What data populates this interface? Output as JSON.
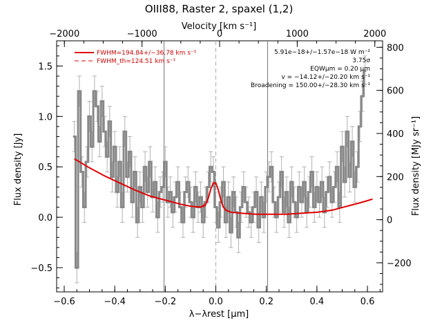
{
  "chart_data": {
    "type": "line",
    "title": "OIII88, Raster 2, spaxel (1,2)",
    "xlabel": "λ−λrest [μm]",
    "ylabel": "Flux density [Jy]",
    "x2label": "Velocity [km s⁻¹]",
    "y2label": "Flux density [MJy sr⁻¹]",
    "xlim": [
      -0.63,
      0.66
    ],
    "ylim": [
      -0.74,
      1.75
    ],
    "x2lim": [
      -2100,
      2100
    ],
    "y2lim": [
      -335,
      830
    ],
    "xticks": [
      "−0.6",
      "−0.4",
      "−0.2",
      "0.0",
      "0.2",
      "0.4",
      "0.6"
    ],
    "xtick_values": [
      -0.6,
      -0.4,
      -0.2,
      0.0,
      0.2,
      0.4,
      0.6
    ],
    "yticks": [
      "−0.5",
      "0.0",
      "0.5",
      "1.0",
      "1.5"
    ],
    "ytick_values": [
      -0.5,
      0.0,
      0.5,
      1.0,
      1.5
    ],
    "x2ticks": [
      "−2000",
      "−1000",
      "0",
      "1000",
      "2000"
    ],
    "x2tick_values": [
      -2000,
      -1000,
      0,
      1000,
      2000
    ],
    "y2ticks": [
      "−200",
      "0",
      "200",
      "400",
      "600",
      "800"
    ],
    "y2tick_values": [
      -200,
      0,
      200,
      400,
      600,
      800
    ],
    "vlines": [
      -0.205,
      0.205
    ],
    "zero_line": 0.0,
    "grid": false,
    "legend": {
      "placement": "top-left",
      "entries": [
        {
          "label": "FWHM=194.84+/−36.78 km s⁻¹",
          "style": "solid",
          "color": "#e00000"
        },
        {
          "label": "FWHM_th=124.51 km s⁻¹",
          "style": "dashed",
          "color": "#e00000"
        }
      ]
    },
    "annotations": [
      "5.91e−18+/−1.57e−18 W m⁻²",
      "3.75σ",
      "EQWμm = 0.20 μm",
      "v = −14.12+/−20.20 km s⁻¹",
      "Broadening = 150.00+/−28.30 km s⁻¹"
    ],
    "series": [
      {
        "name": "Spectrum",
        "color": "#888888",
        "step": true,
        "x": [
          -0.56,
          -0.55,
          -0.54,
          -0.53,
          -0.52,
          -0.51,
          -0.5,
          -0.49,
          -0.48,
          -0.47,
          -0.46,
          -0.45,
          -0.44,
          -0.43,
          -0.42,
          -0.41,
          -0.4,
          -0.39,
          -0.38,
          -0.37,
          -0.36,
          -0.35,
          -0.34,
          -0.33,
          -0.32,
          -0.31,
          -0.3,
          -0.29,
          -0.28,
          -0.27,
          -0.26,
          -0.25,
          -0.24,
          -0.23,
          -0.22,
          -0.21,
          -0.2,
          -0.19,
          -0.18,
          -0.17,
          -0.16,
          -0.15,
          -0.14,
          -0.13,
          -0.12,
          -0.11,
          -0.1,
          -0.09,
          -0.08,
          -0.07,
          -0.06,
          -0.05,
          -0.04,
          -0.03,
          -0.02,
          -0.01,
          0.0,
          0.01,
          0.02,
          0.03,
          0.04,
          0.05,
          0.06,
          0.07,
          0.08,
          0.09,
          0.1,
          0.11,
          0.12,
          0.13,
          0.14,
          0.15,
          0.16,
          0.17,
          0.18,
          0.19,
          0.2,
          0.21,
          0.22,
          0.23,
          0.24,
          0.25,
          0.26,
          0.27,
          0.28,
          0.29,
          0.3,
          0.31,
          0.32,
          0.33,
          0.34,
          0.35,
          0.36,
          0.37,
          0.38,
          0.39,
          0.4,
          0.41,
          0.42,
          0.43,
          0.44,
          0.45,
          0.46,
          0.47,
          0.48,
          0.49,
          0.5,
          0.51,
          0.52,
          0.53,
          0.54,
          0.55,
          0.56,
          0.57,
          0.58,
          0.59
        ],
        "y": [
          0.8,
          -0.5,
          1.25,
          0.45,
          0.1,
          0.55,
          1.0,
          0.7,
          1.25,
          1.1,
          0.75,
          1.15,
          0.85,
          0.6,
          0.95,
          0.4,
          0.7,
          0.25,
          0.55,
          0.1,
          0.85,
          0.4,
          0.65,
          0.15,
          0.45,
          -0.05,
          0.3,
          0.1,
          0.5,
          0.25,
          0.55,
          0.2,
          0.35,
          0.0,
          0.25,
          0.3,
          0.55,
          0.15,
          0.25,
          0.05,
          0.2,
          0.35,
          0.1,
          -0.05,
          0.25,
          0.35,
          0.15,
          0.0,
          0.3,
          0.1,
          0.2,
          -0.05,
          0.15,
          0.3,
          0.5,
          0.45,
          0.1,
          -0.1,
          0.15,
          0.35,
          -0.05,
          0.2,
          -0.15,
          0.25,
          0.05,
          -0.2,
          0.1,
          0.3,
          0.15,
          0.05,
          -0.05,
          0.1,
          0.25,
          -0.1,
          0.2,
          0.0,
          0.3,
          0.4,
          0.5,
          0.15,
          0.0,
          0.2,
          0.45,
          0.05,
          0.25,
          -0.05,
          0.35,
          0.15,
          0.0,
          0.3,
          0.15,
          0.35,
          0.05,
          0.25,
          0.45,
          0.1,
          0.3,
          0.15,
          0.35,
          0.05,
          0.25,
          0.4,
          0.15,
          0.3,
          0.5,
          0.1,
          0.7,
          0.35,
          0.85,
          0.4,
          0.75,
          0.3,
          0.5,
          0.9,
          1.2,
          1.45
        ],
        "error": 0.15
      },
      {
        "name": "FWHM=194.84+/−36.78 km s⁻¹",
        "color": "#e00000",
        "x": [
          -0.56,
          -0.5,
          -0.44,
          -0.38,
          -0.32,
          -0.26,
          -0.2,
          -0.14,
          -0.1,
          -0.06,
          -0.04,
          -0.03,
          -0.02,
          -0.01,
          0.0,
          0.01,
          0.02,
          0.03,
          0.04,
          0.06,
          0.1,
          0.16,
          0.22,
          0.28,
          0.34,
          0.4,
          0.46,
          0.52,
          0.58,
          0.62
        ],
        "y": [
          0.58,
          0.49,
          0.41,
          0.34,
          0.27,
          0.21,
          0.17,
          0.13,
          0.11,
          0.1,
          0.13,
          0.19,
          0.28,
          0.34,
          0.34,
          0.27,
          0.17,
          0.1,
          0.07,
          0.05,
          0.04,
          0.03,
          0.03,
          0.03,
          0.04,
          0.05,
          0.07,
          0.11,
          0.15,
          0.18
        ]
      },
      {
        "name": "FWHM_th=124.51 km s⁻¹",
        "color": "#e00000",
        "dashed": true,
        "x": [
          -0.05,
          -0.04,
          -0.03,
          -0.02,
          -0.01,
          0.0,
          0.01,
          0.02,
          0.03,
          0.04
        ],
        "y": [
          0.1,
          0.12,
          0.18,
          0.27,
          0.33,
          0.33,
          0.26,
          0.16,
          0.09,
          0.07
        ]
      }
    ]
  }
}
